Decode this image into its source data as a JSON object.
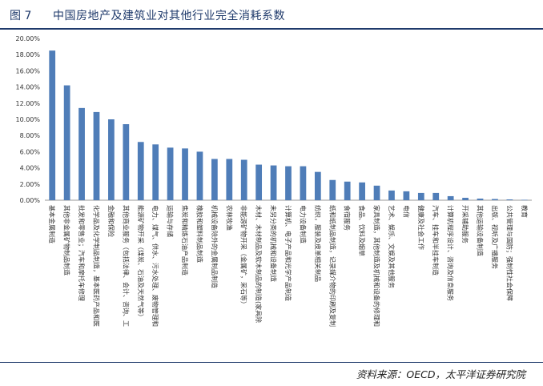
{
  "header": {
    "figure_label": "图 7",
    "title": "中国房地产及建筑业对其他行业完全消耗系数"
  },
  "source_note": "资料来源：OECD，太平洋证券研究院",
  "colors": {
    "bar": "#4f7db8",
    "accent": "#1f3a6b",
    "axis": "#999999"
  },
  "chart_data": {
    "type": "bar",
    "title": "中国房地产及建筑业对其他行业完全消耗系数",
    "xlabel": "",
    "ylabel": "",
    "ylim": [
      0,
      20
    ],
    "yticks": [
      "0.00%",
      "2.00%",
      "4.00%",
      "6.00%",
      "8.00%",
      "10.00%",
      "12.00%",
      "14.00%",
      "16.00%",
      "18.00%",
      "20.00%"
    ],
    "grid": false,
    "legend": "none",
    "categories": [
      "基本金属制造",
      "其他非金属矿物制品制造",
      "批发和零售业；汽车和摩托车修理",
      "化学品及化学制品制造，基本医药产品和医",
      "金融和保险",
      "其他商业服务（包括法律、会计、咨询、工",
      "能源矿物开采（煤炭、石油及天然气等）",
      "电力、煤气、供水、污水处理、废物管理和",
      "运输与存储",
      "焦炭和精炼石油产品制造",
      "橡胶和塑料制品制造",
      "机械设备除外的金属制品制造",
      "农林牧渔",
      "非能源矿物开采（金属矿，采石等）",
      "木材、木材制品及软木制品的制造(家具除",
      "未另分类的机械和设备制造",
      "计算机、电子产品和光学产品制造",
      "电力设备制造",
      "纺织，服装及皮革相关制品",
      "纸和纸制品制造，记录媒介物的印刷及复制",
      "食宿服务",
      "食品、饮料及烟草",
      "家具制造，其他制造及机械和设备的修理和",
      "艺术、娱乐、文娱及其他服务",
      "电信",
      "健康及社会工作",
      "汽车、挂车和半挂车制造",
      "计算机程序设计、咨询及信息服务",
      "开采辅助服务",
      "其他运输设备制造",
      "出版、视听及广播服务",
      "公共管理与国防；强制性社会保障",
      "教育"
    ],
    "values": [
      18.5,
      14.2,
      11.4,
      10.9,
      10.0,
      9.4,
      7.2,
      6.9,
      6.5,
      6.4,
      6.0,
      5.1,
      5.1,
      5.0,
      4.4,
      4.3,
      4.2,
      4.2,
      3.5,
      2.5,
      2.3,
      2.2,
      1.8,
      1.2,
      1.1,
      0.9,
      0.9,
      0.5,
      0.3,
      0.2,
      0.15,
      0.1,
      0.05
    ],
    "value_unit": "%"
  }
}
